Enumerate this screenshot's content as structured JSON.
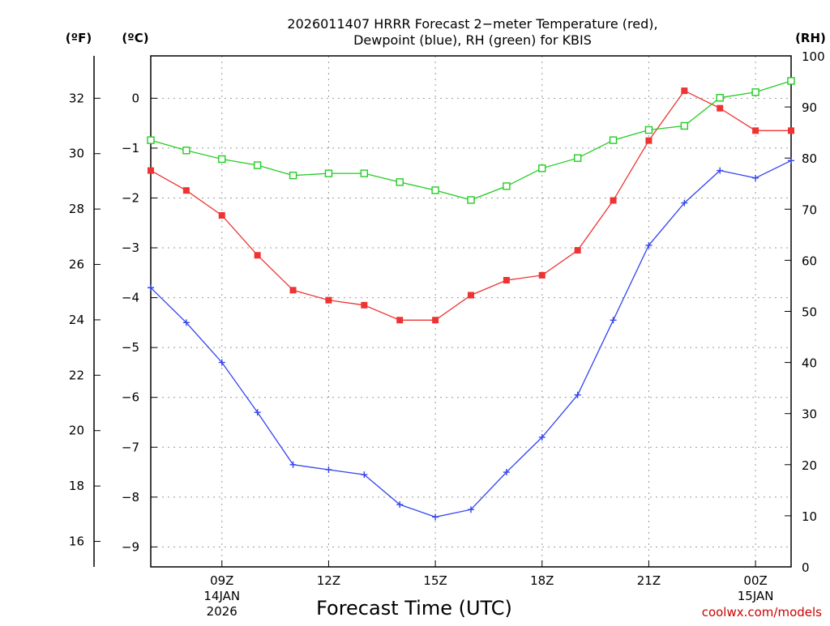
{
  "chart_data": {
    "type": "line",
    "title": "2026011407 HRRR Forecast 2−meter Temperature (red),",
    "subtitle": "Dewpoint (blue), RH (green) for KBIS",
    "xlabel": "Forecast Time (UTC)",
    "credit": "coolwx.com/models",
    "units": {
      "fahrenheit": "(ºF)",
      "celsius": "(ºC)",
      "rh": "(RH)"
    },
    "x": [
      7,
      8,
      9,
      10,
      11,
      12,
      13,
      14,
      15,
      16,
      17,
      18,
      19,
      20,
      21,
      22,
      23,
      24,
      25
    ],
    "xlim": [
      7,
      25
    ],
    "x_ticks": [
      {
        "hour": 9,
        "label": "09Z",
        "date": "14JAN",
        "year": "2026"
      },
      {
        "hour": 12,
        "label": "12Z",
        "date": "",
        "year": ""
      },
      {
        "hour": 15,
        "label": "15Z",
        "date": "",
        "year": ""
      },
      {
        "hour": 18,
        "label": "18Z",
        "date": "",
        "year": ""
      },
      {
        "hour": 21,
        "label": "21Z",
        "date": "",
        "year": ""
      },
      {
        "hour": 24,
        "label": "00Z",
        "date": "15JAN",
        "year": ""
      }
    ],
    "celsius_axis": {
      "ylim": [
        -9.4,
        0.85
      ],
      "ticks": [
        0,
        -1,
        -2,
        -3,
        -4,
        -5,
        -6,
        -7,
        -8,
        -9
      ],
      "tick_labels": [
        "0",
        "−1",
        "−2",
        "−3",
        "−4",
        "−5",
        "−6",
        "−7",
        "−8",
        "−9"
      ]
    },
    "fahrenheit_axis": {
      "ticks": [
        32,
        30,
        28,
        26,
        24,
        22,
        20,
        18,
        16
      ],
      "tick_labels": [
        "32",
        "30",
        "28",
        "26",
        "24",
        "22",
        "20",
        "18",
        "16"
      ]
    },
    "rh_axis": {
      "ylim": [
        0,
        100
      ],
      "ticks": [
        0,
        10,
        20,
        30,
        40,
        50,
        60,
        70,
        80,
        90,
        100
      ],
      "tick_labels": [
        "0",
        "10",
        "20",
        "30",
        "40",
        "50",
        "60",
        "70",
        "80",
        "90",
        "100"
      ]
    },
    "grid": true,
    "series": [
      {
        "name": "Temperature",
        "color": "#ee3333",
        "marker": "filled-square",
        "axis": "celsius",
        "values": [
          -1.45,
          -1.85,
          -2.35,
          -3.15,
          -3.85,
          -4.05,
          -4.15,
          -4.45,
          -4.45,
          -3.95,
          -3.65,
          -3.55,
          -3.05,
          -2.05,
          -0.85,
          0.15,
          -0.2,
          -0.65,
          -0.65
        ]
      },
      {
        "name": "Dewpoint",
        "color": "#3344ee",
        "marker": "plus",
        "axis": "celsius",
        "values": [
          -3.8,
          -4.5,
          -5.3,
          -6.3,
          -7.35,
          -7.45,
          -7.55,
          -8.15,
          -8.4,
          -8.25,
          -7.5,
          -6.8,
          -5.95,
          -4.45,
          -2.95,
          -2.1,
          -1.45,
          -1.6,
          -1.25
        ]
      },
      {
        "name": "RH",
        "color": "#22cc22",
        "marker": "open-square",
        "axis": "rh",
        "values": [
          83.5,
          81.5,
          79.8,
          78.6,
          76.6,
          77.0,
          77.0,
          75.3,
          73.7,
          71.8,
          74.5,
          78.0,
          80.0,
          83.5,
          85.5,
          86.3,
          91.8,
          92.9,
          95.1
        ]
      }
    ]
  }
}
